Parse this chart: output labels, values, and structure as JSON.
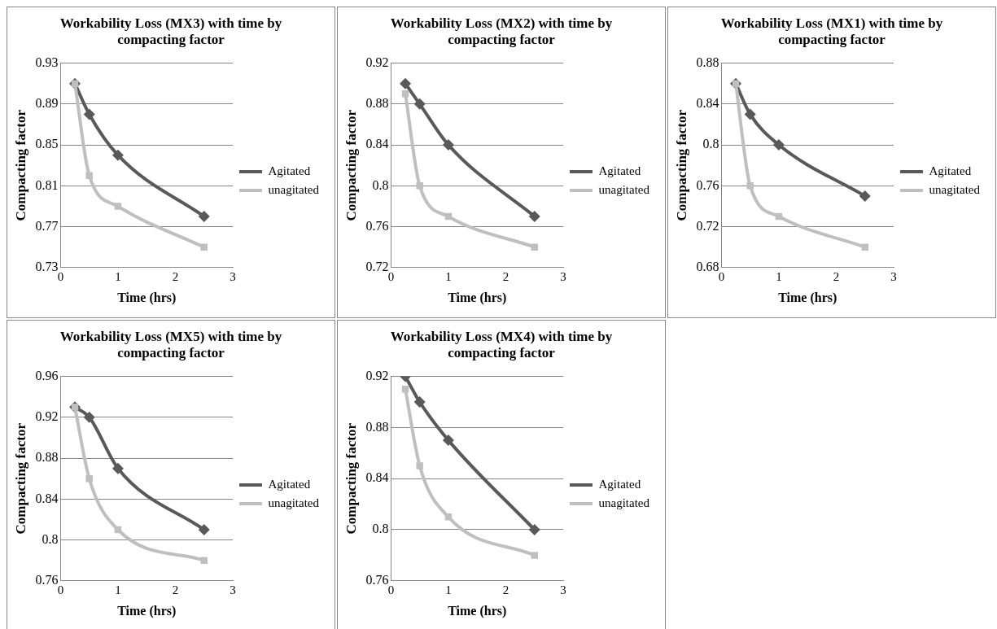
{
  "chart_data": [
    {
      "type": "line",
      "title": "Workability Loss (MX3) with time by compacting factor",
      "xlabel": "Time (hrs)",
      "ylabel": "Compacting factor",
      "xlim": [
        0,
        3
      ],
      "xticks": [
        0,
        1,
        2,
        3
      ],
      "ylim": [
        0.73,
        0.93
      ],
      "yticks": [
        0.73,
        0.77,
        0.81,
        0.85,
        0.89,
        0.93
      ],
      "grid": "y",
      "legend": "right",
      "x": [
        0.25,
        0.5,
        1,
        2.5
      ],
      "series": [
        {
          "name": "Agitated",
          "color": "#595959",
          "marker": "diamond",
          "values": [
            0.91,
            0.88,
            0.84,
            0.78
          ]
        },
        {
          "name": "unagitated",
          "color": "#bfbfbf",
          "marker": "square",
          "values": [
            0.91,
            0.82,
            0.79,
            0.75
          ]
        }
      ]
    },
    {
      "type": "line",
      "title": "Workability Loss (MX2) with time by compacting factor",
      "xlabel": "Time (hrs)",
      "ylabel": "Compacting factor",
      "xlim": [
        0,
        3
      ],
      "xticks": [
        0,
        1,
        2,
        3
      ],
      "ylim": [
        0.72,
        0.92
      ],
      "yticks": [
        0.72,
        0.76,
        0.8,
        0.84,
        0.88,
        0.92
      ],
      "grid": "y",
      "legend": "right",
      "x": [
        0.25,
        0.5,
        1,
        2.5
      ],
      "series": [
        {
          "name": "Agitated",
          "color": "#595959",
          "marker": "diamond",
          "values": [
            0.9,
            0.88,
            0.84,
            0.77
          ]
        },
        {
          "name": "unagitated",
          "color": "#bfbfbf",
          "marker": "square",
          "values": [
            0.89,
            0.8,
            0.77,
            0.74
          ]
        }
      ]
    },
    {
      "type": "line",
      "title": "Workability Loss (MX1) with time by compacting factor",
      "xlabel": "Time (hrs)",
      "ylabel": "Compacting factor",
      "xlim": [
        0,
        3
      ],
      "xticks": [
        0,
        1,
        2,
        3
      ],
      "ylim": [
        0.68,
        0.88
      ],
      "yticks": [
        0.68,
        0.72,
        0.76,
        0.8,
        0.84,
        0.88
      ],
      "grid": "y",
      "legend": "right",
      "x": [
        0.25,
        0.5,
        1,
        2.5
      ],
      "series": [
        {
          "name": "Agitated",
          "color": "#595959",
          "marker": "diamond",
          "values": [
            0.86,
            0.83,
            0.8,
            0.75
          ]
        },
        {
          "name": "unagitated",
          "color": "#bfbfbf",
          "marker": "square",
          "values": [
            0.86,
            0.76,
            0.73,
            0.7
          ]
        }
      ]
    },
    {
      "type": "line",
      "title": "Workability Loss (MX5) with time by compacting factor",
      "xlabel": "Time (hrs)",
      "ylabel": "Compacting factor",
      "xlim": [
        0,
        3
      ],
      "xticks": [
        0,
        1,
        2,
        3
      ],
      "ylim": [
        0.76,
        0.96
      ],
      "yticks": [
        0.76,
        0.8,
        0.84,
        0.88,
        0.92,
        0.96
      ],
      "grid": "y",
      "legend": "right",
      "x": [
        0.25,
        0.5,
        1,
        2.5
      ],
      "series": [
        {
          "name": "Agitated",
          "color": "#595959",
          "marker": "diamond",
          "values": [
            0.93,
            0.92,
            0.87,
            0.81
          ]
        },
        {
          "name": "unagitated",
          "color": "#bfbfbf",
          "marker": "square",
          "values": [
            0.93,
            0.86,
            0.81,
            0.78
          ]
        }
      ]
    },
    {
      "type": "line",
      "title": "Workability Loss (MX4) with time by compacting factor",
      "xlabel": "Time (hrs)",
      "ylabel": "Compacting factor",
      "xlim": [
        0,
        3
      ],
      "xticks": [
        0,
        1,
        2,
        3
      ],
      "ylim": [
        0.76,
        0.92
      ],
      "yticks": [
        0.76,
        0.8,
        0.84,
        0.88,
        0.92
      ],
      "grid": "y",
      "legend": "right",
      "x": [
        0.25,
        0.5,
        1,
        2.5
      ],
      "series": [
        {
          "name": "Agitated",
          "color": "#595959",
          "marker": "diamond",
          "values": [
            0.92,
            0.9,
            0.87,
            0.8
          ]
        },
        {
          "name": "unagitated",
          "color": "#bfbfbf",
          "marker": "square",
          "values": [
            0.91,
            0.85,
            0.81,
            0.78
          ]
        }
      ]
    }
  ]
}
